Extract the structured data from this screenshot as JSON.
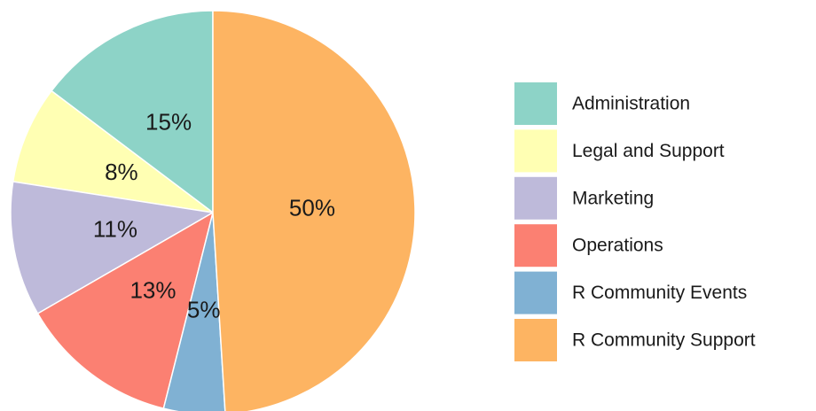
{
  "chart_data": {
    "type": "pie",
    "categories": [
      "Administration",
      "Legal and Support",
      "Marketing",
      "Operations",
      "R Community Events",
      "R Community Support"
    ],
    "values": [
      15,
      8,
      11,
      13,
      5,
      50
    ],
    "value_labels": [
      "15%",
      "8%",
      "11%",
      "13%",
      "5%",
      "50%"
    ],
    "colors": [
      "#8dd3c7",
      "#ffffb3",
      "#bebada",
      "#fb8072",
      "#80b1d3",
      "#fdb462"
    ],
    "legend": "right"
  }
}
